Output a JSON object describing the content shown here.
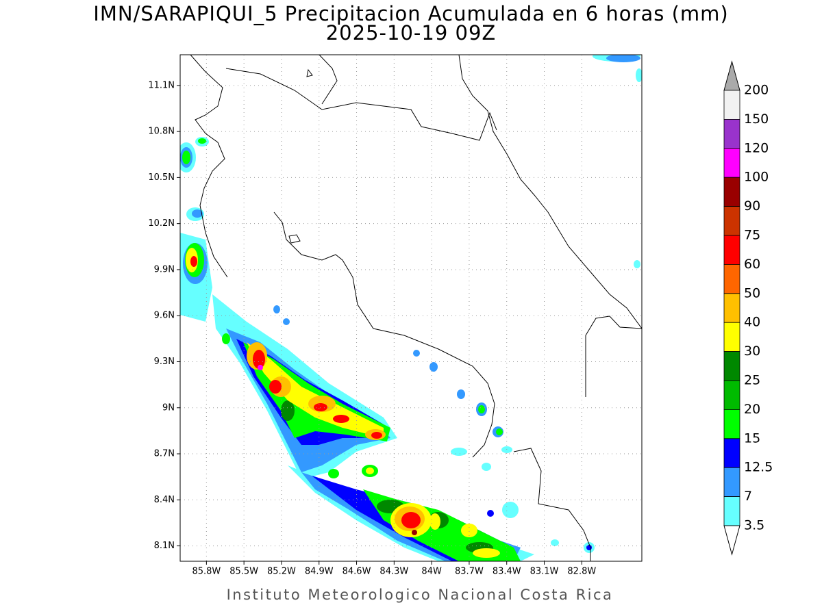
{
  "header": {
    "title": "IMN/SARAPIQUI_5 Precipitacion Acumulada en 6 horas (mm)",
    "subtitle": "2025-10-19 09Z"
  },
  "map": {
    "xlim": [
      -86.01,
      -82.32
    ],
    "ylim": [
      8.0,
      11.3
    ],
    "grid": true,
    "xticks": [
      {
        "value": -85.8,
        "label": "85.8W"
      },
      {
        "value": -85.5,
        "label": "85.5W"
      },
      {
        "value": -85.2,
        "label": "85.2W"
      },
      {
        "value": -84.9,
        "label": "84.9W"
      },
      {
        "value": -84.6,
        "label": "84.6W"
      },
      {
        "value": -84.3,
        "label": "84.3W"
      },
      {
        "value": -84.0,
        "label": "84W"
      },
      {
        "value": -83.7,
        "label": "83.7W"
      },
      {
        "value": -83.4,
        "label": "83.4W"
      },
      {
        "value": -83.1,
        "label": "83.1W"
      },
      {
        "value": -82.8,
        "label": "82.8W"
      }
    ],
    "yticks": [
      {
        "value": 11.1,
        "label": "11.1N"
      },
      {
        "value": 10.8,
        "label": "10.8N"
      },
      {
        "value": 10.5,
        "label": "10.5N"
      },
      {
        "value": 10.2,
        "label": "10.2N"
      },
      {
        "value": 9.9,
        "label": "9.9N"
      },
      {
        "value": 9.6,
        "label": "9.6N"
      },
      {
        "value": 9.3,
        "label": "9.3N"
      },
      {
        "value": 9.0,
        "label": "9N"
      },
      {
        "value": 8.7,
        "label": "8.7N"
      },
      {
        "value": 8.4,
        "label": "8.4N"
      },
      {
        "value": 8.1,
        "label": "8.1N"
      }
    ]
  },
  "colorbar": {
    "levels": [
      200,
      150,
      120,
      100,
      90,
      75,
      60,
      50,
      40,
      30,
      25,
      20,
      15,
      12.5,
      7,
      3.5
    ],
    "colors": [
      "#f2f2f2",
      "#9933cc",
      "#ff00ff",
      "#990000",
      "#cc3300",
      "#ff0000",
      "#ff6600",
      "#ffc000",
      "#ffff00",
      "#008800",
      "#00bb00",
      "#00ff00",
      "#0000ff",
      "#3399ff",
      "#66ffff"
    ],
    "over_color": "#aaaaaa",
    "under_color": "#ffffff"
  },
  "footer": {
    "credit": "Instituto Meteorologico Nacional Costa Rica"
  }
}
